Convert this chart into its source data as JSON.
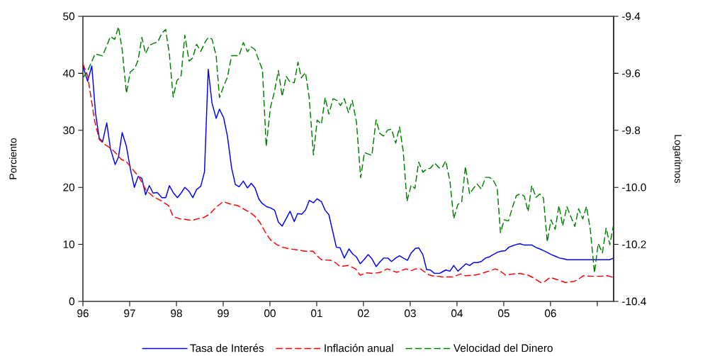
{
  "chart_data": {
    "type": "line",
    "ylabel": "Porciento",
    "y2label": "Logaritmos",
    "xlim": [
      1996,
      2007.35
    ],
    "xticks": [
      {
        "value": 1996,
        "label": "96"
      },
      {
        "value": 1997,
        "label": "97"
      },
      {
        "value": 1998,
        "label": "98"
      },
      {
        "value": 1999,
        "label": "99"
      },
      {
        "value": 2000,
        "label": "00"
      },
      {
        "value": 2001,
        "label": "01"
      },
      {
        "value": 2002,
        "label": "02"
      },
      {
        "value": 2003,
        "label": "03"
      },
      {
        "value": 2004,
        "label": "04"
      },
      {
        "value": 2005,
        "label": "05"
      },
      {
        "value": 2006,
        "label": "06"
      },
      {
        "value": 2007,
        "label": null
      }
    ],
    "ylim": [
      0,
      50
    ],
    "yticks": [
      0,
      10,
      20,
      30,
      40,
      50
    ],
    "y2lim": [
      -10.4,
      -9.4
    ],
    "y2ticks": [
      {
        "value": -10.4,
        "label": "-10.4"
      },
      {
        "value": -10.2,
        "label": "-10.2"
      },
      {
        "value": -10.0,
        "label": "-10.0"
      },
      {
        "value": -9.8,
        "label": "-9.8"
      },
      {
        "value": -9.6,
        "label": "-9.6"
      },
      {
        "value": -9.4,
        "label": "-9.4"
      }
    ],
    "legend": "bottom",
    "grid": false,
    "series": [
      {
        "name": "Tasa de Interés",
        "color": "#0000ff",
        "line_style": "solid",
        "x": [
          1996.0,
          1996.1,
          1996.19,
          1996.27,
          1996.35,
          1996.42,
          1996.51,
          1996.59,
          1996.69,
          1996.76,
          1996.84,
          1996.93,
          1997.02,
          1997.1,
          1997.18,
          1997.26,
          1997.34,
          1997.42,
          1997.5,
          1997.59,
          1997.69,
          1997.77,
          1997.85,
          1997.93,
          1998.02,
          1998.1,
          1998.18,
          1998.27,
          1998.35,
          1998.43,
          1998.52,
          1998.6,
          1998.68,
          1998.76,
          1998.85,
          1998.92,
          1999.01,
          1999.09,
          1999.18,
          1999.26,
          1999.34,
          1999.43,
          1999.52,
          1999.6,
          1999.68,
          1999.76,
          1999.83,
          1999.93,
          2000.01,
          2000.1,
          2000.18,
          2000.26,
          2000.34,
          2000.43,
          2000.52,
          2000.59,
          2000.68,
          2000.76,
          2000.84,
          2000.93,
          2001.01,
          2001.1,
          2001.18,
          2001.26,
          2001.35,
          2001.42,
          2001.5,
          2001.59,
          2001.69,
          2001.77,
          2001.85,
          2001.93,
          2002.02,
          2002.1,
          2002.18,
          2002.27,
          2002.35,
          2002.43,
          2002.52,
          2002.6,
          2002.69,
          2002.77,
          2002.85,
          2002.94,
          2003.02,
          2003.11,
          2003.18,
          2003.27,
          2003.35,
          2003.43,
          2003.52,
          2003.62,
          2003.67,
          2003.76,
          2003.85,
          2003.93,
          2004.02,
          2004.1,
          2004.19,
          2004.27,
          2004.35,
          2004.44,
          2004.52,
          2004.61,
          2004.69,
          2004.77,
          2004.86,
          2004.94,
          2005.03,
          2005.11,
          2005.2,
          2005.28,
          2005.35,
          2005.43,
          2005.52,
          2005.6,
          2005.68,
          2005.77,
          2005.85,
          2005.93,
          2006.02,
          2006.11,
          2006.19,
          2006.27,
          2006.36,
          2006.61,
          2006.86,
          2007.12,
          2007.26,
          2007.35
        ],
        "values": [
          41.3,
          38.6,
          41.3,
          33.0,
          28.6,
          28.0,
          31.3,
          26.7,
          24.0,
          25.3,
          29.6,
          27.2,
          23.0,
          20.0,
          21.9,
          21.6,
          18.7,
          20.3,
          19.0,
          19.1,
          18.2,
          18.2,
          20.3,
          19.1,
          18.2,
          19.0,
          20.0,
          19.3,
          18.2,
          19.6,
          20.2,
          22.7,
          40.7,
          34.8,
          32.1,
          33.7,
          32.2,
          29.0,
          23.4,
          20.5,
          20.1,
          21.1,
          19.9,
          20.7,
          19.9,
          18.0,
          17.2,
          16.6,
          16.4,
          16.0,
          13.9,
          13.2,
          14.4,
          15.8,
          14.0,
          15.4,
          15.3,
          16.0,
          17.7,
          17.3,
          18.0,
          17.5,
          16.0,
          15.2,
          12.0,
          9.5,
          9.4,
          7.6,
          9.2,
          8.3,
          7.8,
          6.6,
          7.4,
          8.2,
          7.5,
          6.1,
          6.9,
          7.6,
          7.6,
          7.0,
          7.6,
          8.0,
          7.6,
          7.2,
          8.5,
          9.3,
          9.4,
          8.2,
          5.6,
          5.5,
          4.9,
          4.9,
          5.1,
          5.5,
          5.3,
          6.3,
          5.3,
          5.9,
          6.6,
          6.3,
          6.8,
          6.8,
          7.0,
          7.6,
          7.8,
          8.2,
          8.6,
          8.8,
          8.9,
          9.5,
          9.8,
          10.0,
          10.1,
          9.9,
          9.9,
          9.9,
          9.5,
          9.2,
          8.9,
          8.6,
          8.2,
          7.9,
          7.6,
          7.5,
          7.3,
          7.3,
          7.3,
          7.3,
          7.3,
          7.6
        ]
      },
      {
        "name": "Inflación anual",
        "color": "#ff0000",
        "line_style": "dashed",
        "x": [
          1996.0,
          1996.1,
          1996.17,
          1996.25,
          1996.35,
          1996.45,
          1996.55,
          1996.67,
          1996.82,
          1996.93,
          1997.05,
          1997.2,
          1997.35,
          1997.5,
          1997.66,
          1997.83,
          1997.93,
          1998.06,
          1998.18,
          1998.33,
          1998.46,
          1998.58,
          1998.71,
          1998.86,
          1999.0,
          1999.14,
          1999.31,
          1999.44,
          1999.59,
          1999.68,
          1999.78,
          1999.91,
          2000.01,
          2000.14,
          2000.26,
          2000.44,
          2000.62,
          2000.74,
          2000.92,
          2001.02,
          2001.1,
          2001.3,
          2001.4,
          2001.5,
          2001.68,
          2001.83,
          2001.93,
          2002.06,
          2002.21,
          2002.36,
          2002.51,
          2002.71,
          2002.91,
          2003.02,
          2003.12,
          2003.22,
          2003.32,
          2003.42,
          2003.52,
          2003.62,
          2003.67,
          2003.92,
          2004.08,
          2004.18,
          2004.38,
          2004.53,
          2004.68,
          2004.82,
          2004.91,
          2005.04,
          2005.19,
          2005.34,
          2005.52,
          2005.64,
          2005.79,
          2005.88,
          2005.99,
          2006.15,
          2006.32,
          2006.5,
          2006.6,
          2006.7,
          2006.9,
          2007.06,
          2007.21,
          2007.35
        ],
        "values": [
          41.7,
          39.6,
          35.9,
          31.7,
          28.4,
          27.6,
          27.1,
          26.3,
          24.9,
          24.5,
          23.3,
          21.8,
          19.5,
          18.4,
          17.7,
          16.8,
          14.9,
          14.5,
          14.4,
          14.2,
          14.5,
          14.7,
          15.3,
          16.6,
          17.5,
          17.1,
          16.8,
          16.2,
          15.5,
          14.9,
          13.9,
          12.0,
          10.8,
          10.0,
          9.5,
          9.2,
          9.0,
          8.8,
          8.8,
          7.9,
          7.3,
          7.2,
          6.8,
          6.1,
          6.3,
          5.7,
          4.6,
          5.0,
          4.9,
          5.1,
          5.7,
          5.1,
          5.7,
          5.4,
          5.7,
          5.7,
          5.1,
          4.6,
          4.4,
          4.4,
          4.3,
          4.3,
          4.8,
          4.5,
          4.6,
          4.9,
          5.3,
          5.7,
          5.4,
          4.6,
          4.8,
          4.9,
          4.6,
          4.1,
          3.3,
          3.5,
          4.2,
          3.8,
          3.3,
          3.5,
          3.9,
          4.5,
          4.4,
          4.4,
          4.5,
          4.2
        ]
      },
      {
        "name": "Velocidad del Dinero",
        "color": "#008000",
        "line_style": "dashed",
        "axis": "y2",
        "x": [
          1996.0,
          1996.1,
          1996.26,
          1996.42,
          1996.5,
          1996.59,
          1996.68,
          1996.76,
          1996.84,
          1996.93,
          1997.01,
          1997.11,
          1997.18,
          1997.26,
          1997.34,
          1997.42,
          1997.51,
          1997.6,
          1997.69,
          1997.77,
          1997.85,
          1997.93,
          1998.01,
          1998.1,
          1998.18,
          1998.27,
          1998.35,
          1998.43,
          1998.52,
          1998.61,
          1998.68,
          1998.76,
          1998.85,
          1998.92,
          1999.01,
          1999.09,
          1999.18,
          1999.34,
          1999.43,
          1999.52,
          1999.6,
          1999.68,
          1999.76,
          1999.84,
          1999.92,
          2000.01,
          2000.1,
          2000.18,
          2000.26,
          2000.35,
          2000.43,
          2000.52,
          2000.6,
          2000.67,
          2000.76,
          2000.84,
          2000.93,
          2001.01,
          2001.1,
          2001.18,
          2001.26,
          2001.35,
          2001.43,
          2001.51,
          2001.59,
          2001.68,
          2001.76,
          2001.85,
          2001.94,
          2002.02,
          2002.1,
          2002.18,
          2002.27,
          2002.35,
          2002.43,
          2002.52,
          2002.6,
          2002.69,
          2002.77,
          2002.85,
          2002.93,
          2003.02,
          2003.1,
          2003.18,
          2003.27,
          2003.35,
          2003.43,
          2003.52,
          2003.62,
          2003.68,
          2003.76,
          2003.85,
          2003.93,
          2004.02,
          2004.1,
          2004.18,
          2004.27,
          2004.35,
          2004.43,
          2004.52,
          2004.61,
          2004.69,
          2004.77,
          2004.86,
          2004.93,
          2005.01,
          2005.1,
          2005.19,
          2005.27,
          2005.35,
          2005.44,
          2005.52,
          2005.6,
          2005.69,
          2005.77,
          2005.85,
          2005.93,
          2006.01,
          2006.1,
          2006.18,
          2006.26,
          2006.35,
          2006.43,
          2006.52,
          2006.6,
          2006.69,
          2006.77,
          2006.85,
          2006.94,
          2007.02,
          2007.11,
          2007.19,
          2007.27,
          2007.35
        ],
        "values": [
          -9.616,
          -9.592,
          -9.532,
          -9.539,
          -9.507,
          -9.471,
          -9.481,
          -9.437,
          -9.517,
          -9.67,
          -9.596,
          -9.582,
          -9.554,
          -9.474,
          -9.531,
          -9.502,
          -9.495,
          -9.49,
          -9.459,
          -9.446,
          -9.534,
          -9.683,
          -9.626,
          -9.608,
          -9.466,
          -9.557,
          -9.546,
          -9.498,
          -9.523,
          -9.492,
          -9.474,
          -9.48,
          -9.538,
          -9.685,
          -9.645,
          -9.614,
          -9.538,
          -9.538,
          -9.492,
          -9.524,
          -9.507,
          -9.517,
          -9.554,
          -9.587,
          -9.857,
          -9.72,
          -9.662,
          -9.59,
          -9.681,
          -9.611,
          -9.631,
          -9.633,
          -9.561,
          -9.616,
          -9.597,
          -9.687,
          -9.886,
          -9.764,
          -9.778,
          -9.685,
          -9.743,
          -9.689,
          -9.695,
          -9.713,
          -9.689,
          -9.738,
          -9.695,
          -9.771,
          -9.966,
          -9.878,
          -9.883,
          -9.888,
          -9.763,
          -9.811,
          -9.82,
          -9.799,
          -9.796,
          -9.845,
          -9.788,
          -9.873,
          -10.049,
          -9.992,
          -10.004,
          -9.911,
          -9.947,
          -9.936,
          -9.933,
          -9.915,
          -9.932,
          -9.932,
          -9.907,
          -9.98,
          -10.11,
          -10.06,
          -10.052,
          -9.927,
          -10.023,
          -10.004,
          -9.988,
          -10.006,
          -9.965,
          -9.965,
          -9.973,
          -10.002,
          -10.159,
          -10.114,
          -10.118,
          -10.068,
          -10.029,
          -10.023,
          -10.031,
          -10.085,
          -9.994,
          -10.035,
          -10.023,
          -10.038,
          -10.191,
          -10.114,
          -10.147,
          -10.064,
          -10.135,
          -10.068,
          -10.101,
          -10.137,
          -10.075,
          -10.111,
          -10.067,
          -10.147,
          -10.3,
          -10.197,
          -10.23,
          -10.143,
          -10.201,
          -10.129
        ]
      }
    ]
  }
}
